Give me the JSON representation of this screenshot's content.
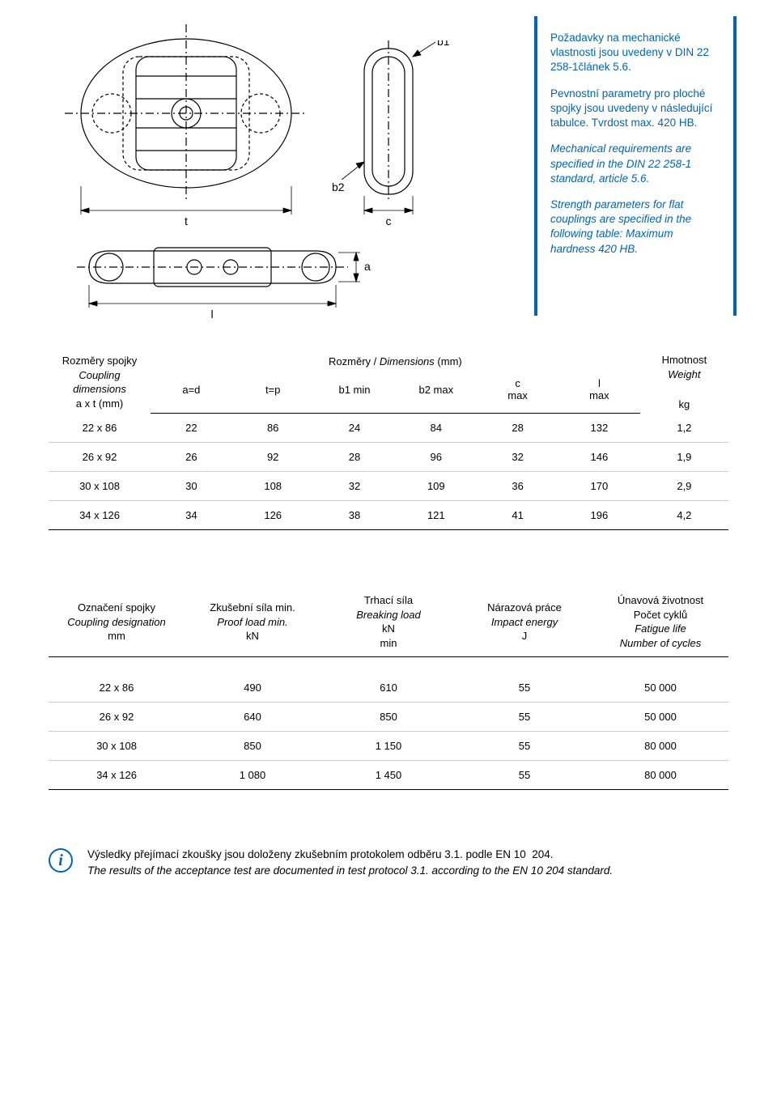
{
  "drawing": {
    "label_t": "t",
    "label_c": "c",
    "label_l": "l",
    "label_a": "a",
    "label_b1": "b1",
    "label_b2": "b2",
    "stroke": "#000000"
  },
  "info": {
    "cz1": "Požadavky na mechanické vlastnosti jsou uvedeny v DIN 22 258-1článek 5.6.",
    "cz2": "Pevnostní parametry pro ploché spojky jsou uvedeny v následující tabulce. Tvrdost max. 420 HB.",
    "en1": "Mechanical requirements are specified in the DIN 22 258-1 standard, article 5.6.",
    "en2": "Strength parameters for flat couplings are specified in the following table: Maximum hardness 420 HB."
  },
  "table1": {
    "head_left_cz": "Rozměry spojky",
    "head_left_en1": "Coupling",
    "head_left_en2": "dimensions",
    "head_left_unit": "a x t (mm)",
    "head_mid_cz": "Rozměry / ",
    "head_mid_en": "Dimensions",
    "head_mid_unit": " (mm)",
    "head_right_cz": "Hmotnost",
    "head_right_en": "Weight",
    "head_right_unit": "kg",
    "col_ad": "a=d",
    "col_tp": "t=p",
    "col_b1": "b1 min",
    "col_b2": "b2 max",
    "col_c": "c",
    "col_c_sub": "max",
    "col_l": "l",
    "col_l_sub": "max",
    "rows": [
      {
        "dim": "22 x 86",
        "ad": "22",
        "tp": "86",
        "b1": "24",
        "b2": "84",
        "c": "28",
        "l": "132",
        "w": "1,2"
      },
      {
        "dim": "26 x 92",
        "ad": "26",
        "tp": "92",
        "b1": "28",
        "b2": "96",
        "c": "32",
        "l": "146",
        "w": "1,9"
      },
      {
        "dim": "30 x 108",
        "ad": "30",
        "tp": "108",
        "b1": "32",
        "b2": "109",
        "c": "36",
        "l": "170",
        "w": "2,9"
      },
      {
        "dim": "34 x 126",
        "ad": "34",
        "tp": "126",
        "b1": "38",
        "b2": "121",
        "c": "41",
        "l": "196",
        "w": "4,2"
      }
    ]
  },
  "table2": {
    "h1_cz": "Označení spojky",
    "h1_en": "Coupling designation",
    "h1_unit": "mm",
    "h2_cz": "Zkušební síla min.",
    "h2_en": "Proof load min.",
    "h2_unit": "kN",
    "h3_cz": "Trhací síla",
    "h3_en": "Breaking load",
    "h3_unit1": "kN",
    "h3_unit2": "min",
    "h4_cz": "Nárazová práce",
    "h4_en": "Impact energy",
    "h4_unit": "J",
    "h5_cz1": "Únavová životnost",
    "h5_cz2": "Počet cyklů",
    "h5_en1": "Fatigue life",
    "h5_en2": "Number of cycles",
    "rows": [
      {
        "dim": "22 x 86",
        "proof": "490",
        "break": "610",
        "impact": "55",
        "fatigue": "50 000"
      },
      {
        "dim": "26 x 92",
        "proof": "640",
        "break": "850",
        "impact": "55",
        "fatigue": "50 000"
      },
      {
        "dim": "30 x 108",
        "proof": "850",
        "break": "1 150",
        "impact": "55",
        "fatigue": "80 000"
      },
      {
        "dim": "34 x 126",
        "proof": "1 080",
        "break": "1 450",
        "impact": "55",
        "fatigue": "80 000"
      }
    ]
  },
  "note": {
    "icon": "i",
    "cz": "Výsledky přejímací zkoušky jsou doloženy zkušebním protokolem odběru 3.1. podle EN 10  204.",
    "en": "The results of the acceptance test are documented in test protocol 3.1. according to the EN 10 204 standard."
  },
  "colors": {
    "accent": "#0066b3",
    "rule": "#000000",
    "rule_light": "#cccccc"
  }
}
